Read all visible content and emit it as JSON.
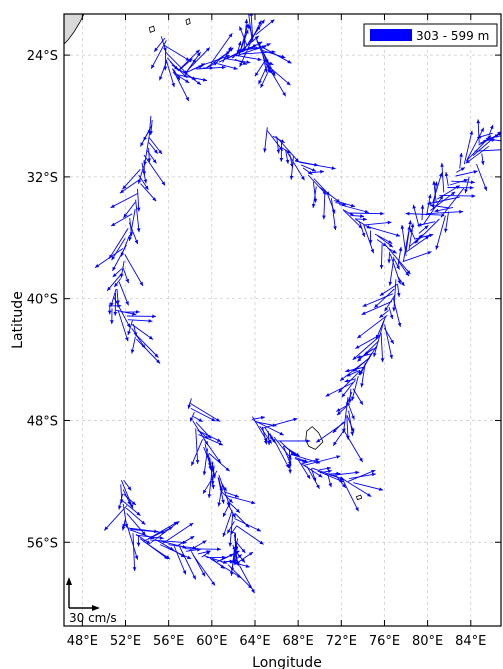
{
  "chart_data": {
    "type": "map-vector",
    "xlabel": "Longitude",
    "ylabel": "Latitude",
    "x_range_deg_e": [
      46.3,
      86.8
    ],
    "y_range_deg_lat": [
      -21.3,
      -61.5
    ],
    "x_ticks": [
      {
        "value": 48,
        "label": "48°E"
      },
      {
        "value": 52,
        "label": "52°E"
      },
      {
        "value": 56,
        "label": "56°E"
      },
      {
        "value": 60,
        "label": "60°E"
      },
      {
        "value": 64,
        "label": "64°E"
      },
      {
        "value": 68,
        "label": "68°E"
      },
      {
        "value": 72,
        "label": "72°E"
      },
      {
        "value": 76,
        "label": "76°E"
      },
      {
        "value": 80,
        "label": "80°E"
      },
      {
        "value": 84,
        "label": "84°E"
      }
    ],
    "y_ticks": [
      {
        "value": -24,
        "label": "24°S"
      },
      {
        "value": -32,
        "label": "32°S"
      },
      {
        "value": -40,
        "label": "40°S"
      },
      {
        "value": -48,
        "label": "48°S"
      },
      {
        "value": -56,
        "label": "56°S"
      }
    ],
    "grid": true,
    "legend": {
      "label": "303 - 599 m",
      "color": "#0000ff",
      "placement": "top-right"
    },
    "scale_arrow": {
      "label": "30 cm/s"
    },
    "arrow_color": "#0000ff",
    "land_color": "#d9d9d9",
    "float_tracks": [
      {
        "name": "track-north-loop",
        "points": [
          [
            55.5,
            -22.7
          ],
          [
            55.9,
            -24.3
          ],
          [
            56.6,
            -25.2
          ],
          [
            58.0,
            -25.0
          ],
          [
            60.0,
            -24.6
          ],
          [
            61.8,
            -24.2
          ],
          [
            62.5,
            -24.0
          ],
          [
            63.4,
            -23.4
          ],
          [
            64.0,
            -22.6
          ],
          [
            64.8,
            -24.0
          ],
          [
            65.3,
            -25.0
          ]
        ]
      },
      {
        "name": "track-west-curve",
        "points": [
          [
            54.4,
            -28.0
          ],
          [
            54.0,
            -30.0
          ],
          [
            53.4,
            -31.8
          ],
          [
            52.8,
            -34.0
          ],
          [
            52.0,
            -36.5
          ],
          [
            51.4,
            -38.8
          ],
          [
            50.6,
            -40.4
          ],
          [
            52.5,
            -41.4
          ],
          [
            53.0,
            -42.8
          ]
        ]
      },
      {
        "name": "track-central-diag",
        "points": [
          [
            65.0,
            -28.8
          ],
          [
            66.8,
            -30.2
          ],
          [
            68.5,
            -31.5
          ],
          [
            70.4,
            -33.0
          ],
          [
            72.3,
            -34.2
          ],
          [
            74.2,
            -35.2
          ],
          [
            76.0,
            -36.5
          ],
          [
            77.4,
            -37.8
          ]
        ]
      },
      {
        "name": "track-east-loop",
        "points": [
          [
            77.4,
            -37.8
          ],
          [
            78.5,
            -36.5
          ],
          [
            79.8,
            -34.6
          ],
          [
            81.2,
            -33.2
          ],
          [
            82.8,
            -31.8
          ],
          [
            84.6,
            -30.0
          ],
          [
            86.0,
            -29.2
          ],
          [
            82.4,
            -34.0
          ],
          [
            80.6,
            -35.0
          ]
        ]
      },
      {
        "name": "track-east-descent",
        "points": [
          [
            77.3,
            -38.5
          ],
          [
            76.8,
            -40.0
          ],
          [
            76.0,
            -41.7
          ],
          [
            75.2,
            -43.2
          ],
          [
            74.0,
            -44.4
          ],
          [
            73.0,
            -45.8
          ],
          [
            72.5,
            -47.4
          ],
          [
            72.3,
            -48.8
          ]
        ]
      },
      {
        "name": "track-kerguelen",
        "points": [
          [
            63.6,
            -47.8
          ],
          [
            65.0,
            -48.6
          ],
          [
            66.5,
            -49.6
          ],
          [
            67.8,
            -50.6
          ],
          [
            69.4,
            -51.2
          ],
          [
            71.2,
            -51.7
          ],
          [
            73.5,
            -52.0
          ]
        ]
      },
      {
        "name": "track-mid-south",
        "points": [
          [
            58.0,
            -46.6
          ],
          [
            58.5,
            -48.4
          ],
          [
            59.4,
            -49.7
          ],
          [
            60.3,
            -51.0
          ],
          [
            61.0,
            -52.6
          ],
          [
            61.9,
            -54.0
          ],
          [
            62.3,
            -55.4
          ],
          [
            62.0,
            -56.6
          ]
        ]
      },
      {
        "name": "track-southwest",
        "points": [
          [
            51.6,
            -51.8
          ],
          [
            51.9,
            -53.4
          ],
          [
            52.2,
            -55.0
          ],
          [
            53.3,
            -55.8
          ],
          [
            55.0,
            -56.0
          ],
          [
            57.0,
            -56.4
          ],
          [
            59.0,
            -56.9
          ],
          [
            61.0,
            -57.3
          ],
          [
            62.8,
            -57.6
          ]
        ]
      }
    ],
    "islands": [
      {
        "name": "crozet-west",
        "points": [
          [
            54.2,
            -22.2
          ],
          [
            54.6,
            -22.1
          ],
          [
            54.7,
            -22.4
          ],
          [
            54.3,
            -22.5
          ]
        ]
      },
      {
        "name": "crozet-east",
        "points": [
          [
            57.6,
            -21.7
          ],
          [
            57.9,
            -21.6
          ],
          [
            58.0,
            -21.9
          ],
          [
            57.7,
            -22.0
          ]
        ]
      },
      {
        "name": "kerguelen",
        "points": [
          [
            68.8,
            -48.7
          ],
          [
            69.3,
            -48.4
          ],
          [
            69.9,
            -48.8
          ],
          [
            70.3,
            -49.4
          ],
          [
            69.6,
            -49.9
          ],
          [
            69.0,
            -49.7
          ],
          [
            68.7,
            -49.3
          ]
        ]
      },
      {
        "name": "heard",
        "points": [
          [
            73.4,
            -53.0
          ],
          [
            73.8,
            -52.9
          ],
          [
            73.9,
            -53.1
          ],
          [
            73.5,
            -53.2
          ]
        ]
      }
    ]
  }
}
